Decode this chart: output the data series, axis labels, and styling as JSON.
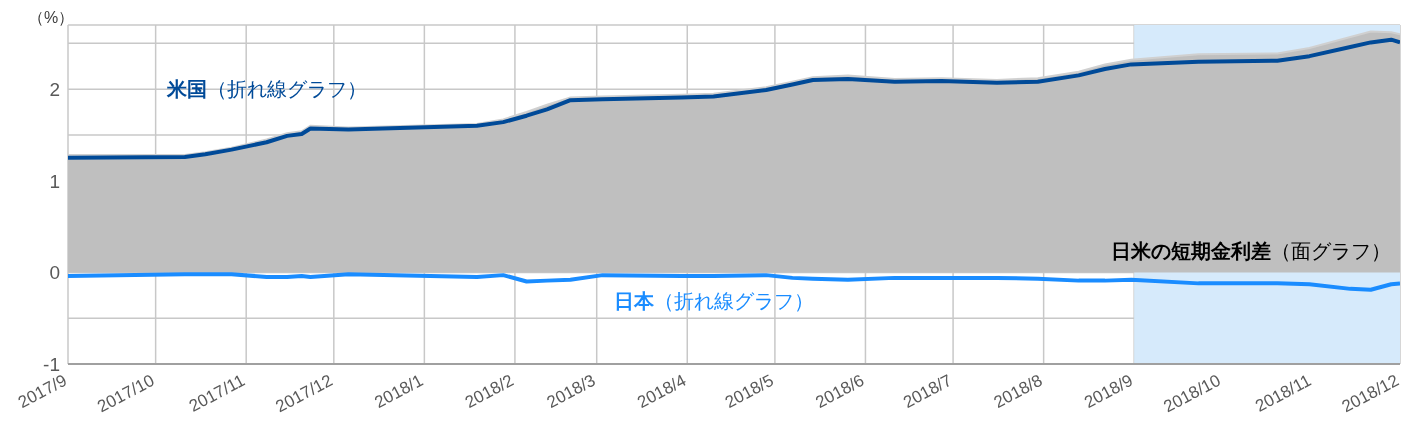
{
  "chart_data": {
    "type": "line",
    "ylabel": "（%）",
    "x": [
      "2017-09-01",
      "2017-10-11",
      "2017-10-18",
      "2017-10-27",
      "2017-11-08",
      "2017-11-15",
      "2017-11-20",
      "2017-11-23",
      "2017-12-06",
      "2018-01-19",
      "2018-01-28",
      "2018-02-05",
      "2018-02-12",
      "2018-02-20",
      "2018-03-03",
      "2018-03-30",
      "2018-04-10",
      "2018-04-28",
      "2018-05-07",
      "2018-05-14",
      "2018-05-26",
      "2018-06-11",
      "2018-06-27",
      "2018-07-16",
      "2018-07-30",
      "2018-08-13",
      "2018-08-22",
      "2018-08-31",
      "2018-09-23",
      "2018-10-20",
      "2018-10-31",
      "2018-11-14",
      "2018-11-21",
      "2018-11-28",
      "2018-12-01"
    ],
    "series": [
      {
        "type": "area",
        "name": "日米の短期金利差（面グラフ）",
        "color": "#bfbfbf",
        "values": [
          1.28,
          1.28,
          1.31,
          1.36,
          1.45,
          1.52,
          1.54,
          1.6,
          1.58,
          1.62,
          1.67,
          1.75,
          1.83,
          1.91,
          1.92,
          1.94,
          1.95,
          2.02,
          2.08,
          2.13,
          2.15,
          2.11,
          2.12,
          2.1,
          2.12,
          2.19,
          2.27,
          2.32,
          2.38,
          2.39,
          2.45,
          2.57,
          2.63,
          2.62,
          2.6
        ]
      },
      {
        "name": "米国（折れ線グラフ）",
        "color": "#004a98",
        "values": [
          1.25,
          1.26,
          1.29,
          1.34,
          1.42,
          1.49,
          1.51,
          1.57,
          1.56,
          1.6,
          1.64,
          1.71,
          1.78,
          1.88,
          1.89,
          1.91,
          1.92,
          1.99,
          2.05,
          2.1,
          2.11,
          2.08,
          2.09,
          2.07,
          2.08,
          2.15,
          2.22,
          2.27,
          2.3,
          2.31,
          2.36,
          2.46,
          2.51,
          2.54,
          2.51
        ]
      },
      {
        "name": "日本（折れ線グラフ）",
        "color": "#1a8cff",
        "values": [
          -0.04,
          -0.02,
          -0.02,
          -0.02,
          -0.05,
          -0.05,
          -0.04,
          -0.05,
          -0.02,
          -0.05,
          -0.03,
          -0.1,
          -0.09,
          -0.08,
          -0.03,
          -0.04,
          -0.04,
          -0.03,
          -0.06,
          -0.07,
          -0.08,
          -0.06,
          -0.06,
          -0.06,
          -0.07,
          -0.09,
          -0.09,
          -0.08,
          -0.12,
          -0.12,
          -0.13,
          -0.18,
          -0.19,
          -0.13,
          -0.12
        ]
      }
    ],
    "xlim": [
      "2017-09-01",
      "2018-12-01"
    ],
    "xticks": [
      {
        "value": "2017-09-01",
        "label": "2017/9"
      },
      {
        "value": "2017-10-01",
        "label": "2017/10"
      },
      {
        "value": "2017-11-01",
        "label": "2017/11"
      },
      {
        "value": "2017-12-01",
        "label": "2017/12"
      },
      {
        "value": "2018-01-01",
        "label": "2018/1"
      },
      {
        "value": "2018-02-01",
        "label": "2018/2"
      },
      {
        "value": "2018-03-01",
        "label": "2018/3"
      },
      {
        "value": "2018-04-01",
        "label": "2018/4"
      },
      {
        "value": "2018-05-01",
        "label": "2018/5"
      },
      {
        "value": "2018-06-01",
        "label": "2018/6"
      },
      {
        "value": "2018-07-01",
        "label": "2018/7"
      },
      {
        "value": "2018-08-01",
        "label": "2018/8"
      },
      {
        "value": "2018-09-01",
        "label": "2018/9"
      },
      {
        "value": "2018-10-01",
        "label": "2018/10"
      },
      {
        "value": "2018-11-01",
        "label": "2018/11"
      },
      {
        "value": "2018-12-01",
        "label": "2018/12"
      }
    ],
    "ylim": [
      -1,
      2.7
    ],
    "yticks": [
      -1,
      {
        "value": -0.5,
        "label": null
      },
      0,
      1,
      {
        "value": 1.5,
        "label": null
      },
      2,
      {
        "value": 2.5,
        "label": null
      }
    ],
    "bands": [
      {
        "axis": "x",
        "from": "2018-09-01",
        "to": "2018-12-01",
        "color": "#d6eafb"
      }
    ],
    "grid": true,
    "legend": false,
    "marker": "none",
    "line_style": "solid"
  }
}
